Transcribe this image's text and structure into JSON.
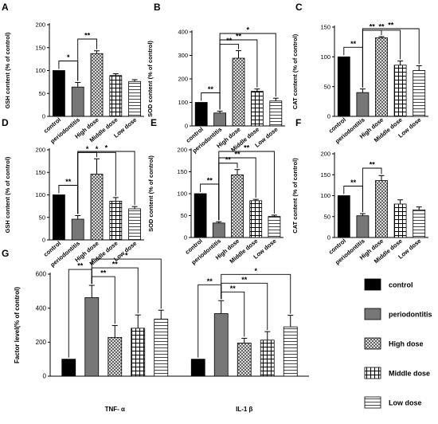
{
  "colors": {
    "control": "#000000",
    "periodontitis": "#777777",
    "bar_outline": "#000000",
    "background": "#ffffff"
  },
  "chart_data": [
    {
      "panel": "A",
      "type": "bar",
      "categories": [
        "control",
        "periodontitis",
        "High dose",
        "Middle dose",
        "Low dose"
      ],
      "values": [
        100,
        64,
        137,
        89,
        76
      ],
      "errors": [
        0,
        10,
        6,
        4,
        4
      ],
      "ylabel": "GSH content (% of control)",
      "ylim": [
        0,
        200
      ],
      "yticks": [
        0,
        50,
        100,
        150,
        200
      ],
      "significance": [
        {
          "from": 0,
          "to": 1,
          "label": "*"
        },
        {
          "from": 1,
          "to": 2,
          "label": "**"
        }
      ]
    },
    {
      "panel": "B",
      "type": "bar",
      "categories": [
        "control",
        "periodontitis",
        "High dose",
        "Middle dose",
        "Low dose"
      ],
      "values": [
        100,
        55,
        288,
        147,
        106
      ],
      "errors": [
        0,
        8,
        32,
        10,
        12
      ],
      "ylabel": "SOD content (% of control)",
      "ylim": [
        0,
        400
      ],
      "yticks": [
        0,
        100,
        200,
        300,
        400
      ],
      "significance": [
        {
          "from": 0,
          "to": 1,
          "label": "**"
        },
        {
          "from": 1,
          "to": 2,
          "label": "**"
        },
        {
          "from": 1,
          "to": 3,
          "label": "**"
        },
        {
          "from": 1,
          "to": 4,
          "label": "*"
        }
      ]
    },
    {
      "panel": "C",
      "type": "bar",
      "categories": [
        "control",
        "periodontitis",
        "High dose",
        "Middle dose",
        "Low dose"
      ],
      "values": [
        100,
        40,
        132,
        86,
        77
      ],
      "errors": [
        0,
        6,
        2,
        7,
        8
      ],
      "ylabel": "CAT content (% of control)",
      "ylim": [
        0,
        150
      ],
      "yticks": [
        0,
        50,
        100,
        150
      ],
      "significance": [
        {
          "from": 0,
          "to": 1,
          "label": "**"
        },
        {
          "from": 1,
          "to": 2,
          "label": "**"
        },
        {
          "from": 1,
          "to": 3,
          "label": "**"
        },
        {
          "from": 1,
          "to": 4,
          "label": "**"
        }
      ]
    },
    {
      "panel": "D",
      "type": "bar",
      "categories": [
        "control",
        "periodontitis",
        "High dose",
        "Middle dose",
        "Low dose"
      ],
      "values": [
        100,
        46,
        146,
        86,
        69
      ],
      "errors": [
        0,
        8,
        34,
        8,
        5
      ],
      "ylabel": "GSH content (% of control)",
      "ylim": [
        0,
        200
      ],
      "yticks": [
        0,
        50,
        100,
        150,
        200
      ],
      "significance": [
        {
          "from": 0,
          "to": 1,
          "label": "**"
        },
        {
          "from": 1,
          "to": 2,
          "label": "*"
        },
        {
          "from": 1,
          "to": 3,
          "label": "*"
        },
        {
          "from": 1,
          "to": 4,
          "label": "*"
        }
      ]
    },
    {
      "panel": "E",
      "type": "bar",
      "categories": [
        "control",
        "periodontitis",
        "High dose",
        "Middle dose",
        "Low dose"
      ],
      "values": [
        100,
        33,
        143,
        84,
        48
      ],
      "errors": [
        0,
        3,
        12,
        3,
        3
      ],
      "ylabel": "SOD content (% of control)",
      "ylim": [
        0,
        200
      ],
      "yticks": [
        0,
        50,
        100,
        150,
        200
      ],
      "significance": [
        {
          "from": 0,
          "to": 1,
          "label": "**"
        },
        {
          "from": 1,
          "to": 2,
          "label": "**"
        },
        {
          "from": 1,
          "to": 3,
          "label": "**"
        },
        {
          "from": 1,
          "to": 4,
          "label": "**"
        }
      ]
    },
    {
      "panel": "F",
      "type": "bar",
      "categories": [
        "control",
        "periodontitis",
        "High dose",
        "Middle dose",
        "Low dose"
      ],
      "values": [
        100,
        52,
        136,
        80,
        66
      ],
      "errors": [
        0,
        5,
        12,
        10,
        7
      ],
      "ylabel": "CAT content (% of control)",
      "ylim": [
        0,
        200
      ],
      "yticks": [
        0,
        50,
        100,
        150,
        200
      ],
      "significance": [
        {
          "from": 0,
          "to": 1,
          "label": "**"
        },
        {
          "from": 1,
          "to": 2,
          "label": "**"
        }
      ]
    },
    {
      "panel": "G",
      "type": "bar",
      "categories": [
        "TNF- α",
        "IL-1 β"
      ],
      "series": [
        {
          "name": "control",
          "values": [
            100,
            100
          ],
          "errors": [
            0,
            0
          ]
        },
        {
          "name": "periodontitis",
          "values": [
            462,
            368
          ],
          "errors": [
            72,
            76
          ]
        },
        {
          "name": "High dose",
          "values": [
            228,
            195
          ],
          "errors": [
            70,
            28
          ]
        },
        {
          "name": "Middle dose",
          "values": [
            282,
            212
          ],
          "errors": [
            78,
            50
          ]
        },
        {
          "name": "Low dose",
          "values": [
            336,
            290
          ],
          "errors": [
            52,
            68
          ]
        }
      ],
      "ylabel": "Factor level(% of control)",
      "ylim": [
        0,
        600
      ],
      "yticks": [
        0,
        200,
        400,
        600
      ],
      "legend_position": "right",
      "significance": [
        {
          "group": 0,
          "from": 0,
          "to": 1,
          "label": "**"
        },
        {
          "group": 0,
          "from": 1,
          "to": 2,
          "label": "**"
        },
        {
          "group": 0,
          "from": 1,
          "to": 3,
          "label": "**"
        },
        {
          "group": 0,
          "from": 1,
          "to": 4,
          "label": "*"
        },
        {
          "group": 1,
          "from": 0,
          "to": 1,
          "label": "**"
        },
        {
          "group": 1,
          "from": 1,
          "to": 2,
          "label": "**"
        },
        {
          "group": 1,
          "from": 1,
          "to": 3,
          "label": "**"
        },
        {
          "group": 1,
          "from": 1,
          "to": 4,
          "label": "*"
        }
      ]
    }
  ]
}
